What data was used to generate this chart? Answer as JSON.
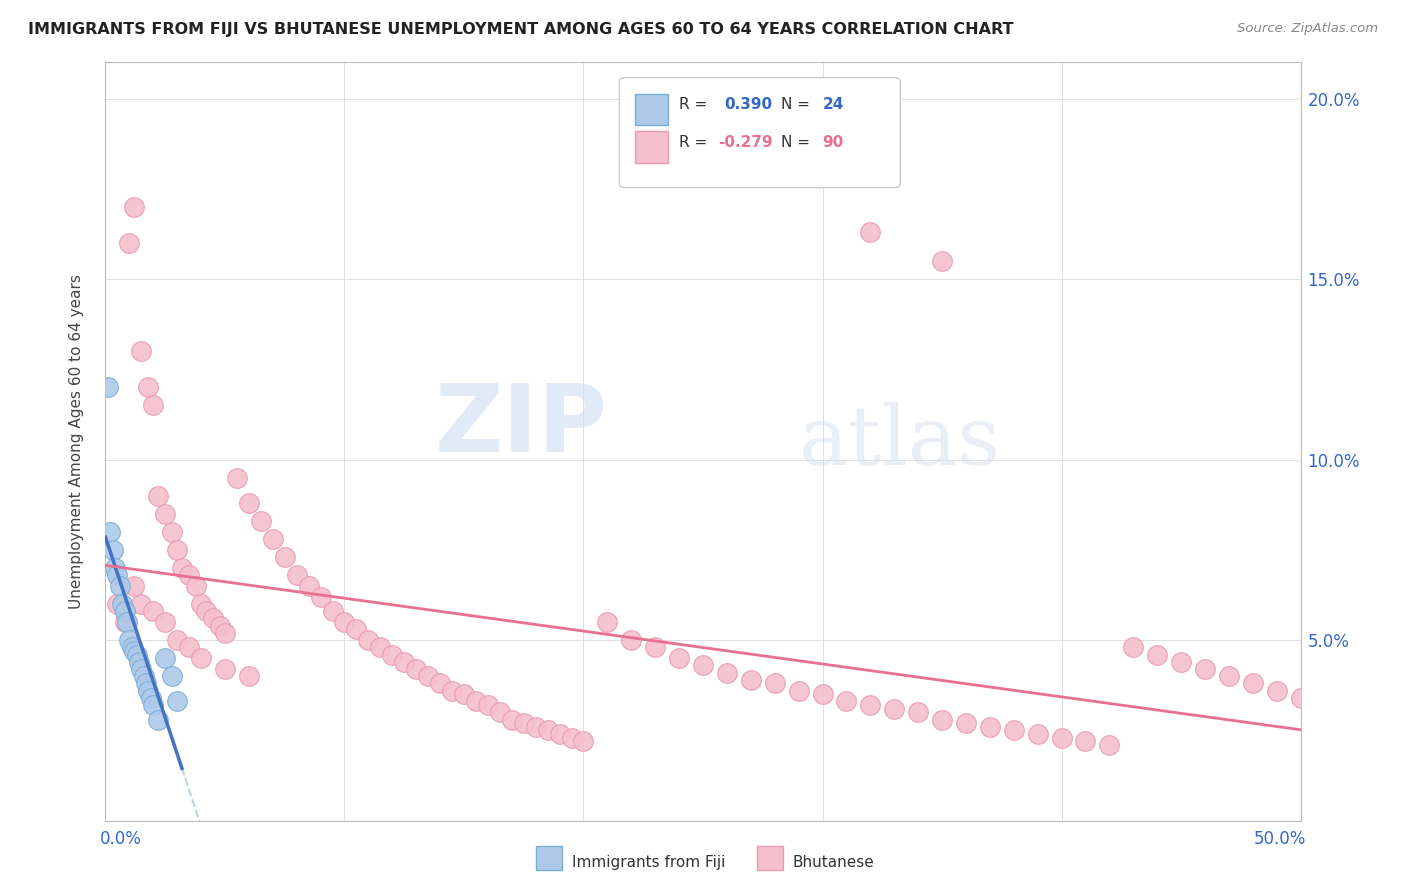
{
  "title": "IMMIGRANTS FROM FIJI VS BHUTANESE UNEMPLOYMENT AMONG AGES 60 TO 64 YEARS CORRELATION CHART",
  "source": "Source: ZipAtlas.com",
  "ylabel": "Unemployment Among Ages 60 to 64 years",
  "fiji_R": 0.39,
  "fiji_N": 24,
  "bhutan_R": -0.279,
  "bhutan_N": 90,
  "fiji_color": "#adc9ea",
  "fiji_edge_color": "#7aadd4",
  "fiji_line_color": "#4472c4",
  "fiji_dash_color": "#aac4e0",
  "bhutan_color": "#f5bfce",
  "bhutan_edge_color": "#e89ab0",
  "bhutan_line_color": "#e87090",
  "xlim": [
    0.0,
    0.5
  ],
  "ylim": [
    0.0,
    0.21
  ],
  "watermark_zip": "ZIP",
  "watermark_atlas": "atlas",
  "background_color": "#ffffff",
  "legend_fiji_label": "Immigrants from Fiji",
  "legend_bhutan_label": "Bhutanese"
}
